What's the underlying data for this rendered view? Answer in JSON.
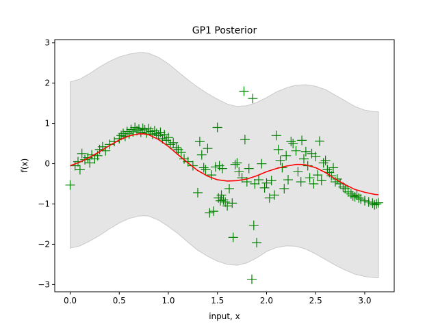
{
  "chart_data": {
    "type": "scatter",
    "title": "GP1 Posterior",
    "xlabel": "input, x",
    "ylabel": "f(x)",
    "xlim": [
      -0.157,
      3.3
    ],
    "ylim": [
      -3.18,
      3.08
    ],
    "x_ticks": [
      0.0,
      0.5,
      1.0,
      1.5,
      2.0,
      2.5,
      3.0
    ],
    "x_tick_labels": [
      "0.0",
      "0.5",
      "1.0",
      "1.5",
      "2.0",
      "2.5",
      "3.0"
    ],
    "y_ticks": [
      -3,
      -2,
      -1,
      0,
      1,
      2,
      3
    ],
    "y_tick_labels": [
      "−3",
      "−2",
      "−1",
      "0",
      "1",
      "2",
      "3"
    ],
    "grid": false,
    "colors": {
      "band_fill": "#e5e5e5",
      "band_stroke": "#c8c8c8",
      "mean_line": "#ff0000",
      "points": "#008000"
    },
    "series": [
      {
        "name": "confidence band",
        "kind": "band",
        "x": [
          0.0,
          0.1,
          0.2,
          0.3,
          0.4,
          0.5,
          0.6,
          0.7,
          0.75,
          0.8,
          0.9,
          1.0,
          1.1,
          1.2,
          1.3,
          1.4,
          1.5,
          1.6,
          1.7,
          1.8,
          1.9,
          2.0,
          2.1,
          2.2,
          2.3,
          2.4,
          2.5,
          2.6,
          2.7,
          2.8,
          2.9,
          3.0,
          3.1,
          3.14
        ],
        "upper": [
          2.03,
          2.1,
          2.24,
          2.4,
          2.54,
          2.65,
          2.72,
          2.76,
          2.76,
          2.74,
          2.64,
          2.48,
          2.28,
          2.08,
          1.9,
          1.74,
          1.6,
          1.48,
          1.42,
          1.44,
          1.52,
          1.64,
          1.78,
          1.88,
          1.95,
          1.96,
          1.92,
          1.84,
          1.7,
          1.56,
          1.42,
          1.33,
          1.29,
          1.29
        ],
        "lower": [
          -2.1,
          -2.04,
          -1.92,
          -1.78,
          -1.62,
          -1.47,
          -1.36,
          -1.3,
          -1.29,
          -1.3,
          -1.4,
          -1.56,
          -1.74,
          -1.95,
          -2.15,
          -2.3,
          -2.42,
          -2.5,
          -2.52,
          -2.46,
          -2.34,
          -2.18,
          -2.08,
          -2.04,
          -2.05,
          -2.12,
          -2.24,
          -2.38,
          -2.52,
          -2.64,
          -2.74,
          -2.8,
          -2.83,
          -2.83
        ]
      },
      {
        "name": "posterior mean",
        "kind": "line",
        "x": [
          0.0,
          0.1,
          0.2,
          0.3,
          0.4,
          0.5,
          0.6,
          0.7,
          0.75,
          0.8,
          0.9,
          1.0,
          1.1,
          1.2,
          1.3,
          1.4,
          1.5,
          1.6,
          1.7,
          1.8,
          1.9,
          2.0,
          2.1,
          2.2,
          2.3,
          2.35,
          2.4,
          2.5,
          2.6,
          2.7,
          2.8,
          2.9,
          3.0,
          3.1,
          3.14
        ],
        "y": [
          -0.05,
          0.04,
          0.16,
          0.3,
          0.45,
          0.59,
          0.69,
          0.74,
          0.74,
          0.72,
          0.6,
          0.43,
          0.22,
          0.02,
          -0.17,
          -0.31,
          -0.4,
          -0.43,
          -0.42,
          -0.38,
          -0.3,
          -0.2,
          -0.12,
          -0.06,
          -0.02,
          -0.02,
          -0.03,
          -0.1,
          -0.22,
          -0.38,
          -0.52,
          -0.64,
          -0.71,
          -0.76,
          -0.77
        ]
      },
      {
        "name": "observations",
        "kind": "scatter",
        "x": [
          0.0,
          0.05,
          0.08,
          0.1,
          0.12,
          0.15,
          0.18,
          0.2,
          0.22,
          0.25,
          0.28,
          0.3,
          0.33,
          0.36,
          0.4,
          0.45,
          0.5,
          0.52,
          0.54,
          0.56,
          0.58,
          0.6,
          0.62,
          0.64,
          0.66,
          0.68,
          0.7,
          0.72,
          0.74,
          0.76,
          0.78,
          0.8,
          0.82,
          0.84,
          0.86,
          0.88,
          0.9,
          0.92,
          0.94,
          0.96,
          0.98,
          1.0,
          1.02,
          1.05,
          1.08,
          1.1,
          1.13,
          1.16,
          1.2,
          1.25,
          1.3,
          1.32,
          1.34,
          1.36,
          1.38,
          1.4,
          1.42,
          1.44,
          1.46,
          1.48,
          1.5,
          1.51,
          1.52,
          1.53,
          1.54,
          1.55,
          1.56,
          1.58,
          1.6,
          1.62,
          1.65,
          1.66,
          1.68,
          1.7,
          1.72,
          1.75,
          1.77,
          1.78,
          1.8,
          1.82,
          1.85,
          1.86,
          1.87,
          1.88,
          1.9,
          1.92,
          1.95,
          1.98,
          2.0,
          2.03,
          2.05,
          2.08,
          2.1,
          2.12,
          2.14,
          2.16,
          2.18,
          2.2,
          2.22,
          2.25,
          2.27,
          2.3,
          2.32,
          2.35,
          2.36,
          2.38,
          2.4,
          2.42,
          2.44,
          2.46,
          2.48,
          2.5,
          2.52,
          2.54,
          2.56,
          2.58,
          2.6,
          2.62,
          2.64,
          2.66,
          2.68,
          2.7,
          2.72,
          2.75,
          2.78,
          2.8,
          2.83,
          2.86,
          2.88,
          2.9,
          2.92,
          2.94,
          2.96,
          3.0,
          3.04,
          3.08,
          3.1,
          3.12,
          3.14
        ],
        "y": [
          -0.53,
          -0.05,
          0.05,
          -0.15,
          0.25,
          0.1,
          0.15,
          0.02,
          0.22,
          0.12,
          0.2,
          0.35,
          0.42,
          0.32,
          0.48,
          0.55,
          0.62,
          0.7,
          0.75,
          0.68,
          0.8,
          0.74,
          0.85,
          0.79,
          0.9,
          0.82,
          0.86,
          0.78,
          0.88,
          0.84,
          0.76,
          0.87,
          0.8,
          0.73,
          0.82,
          0.75,
          0.7,
          0.78,
          0.62,
          0.72,
          0.58,
          0.65,
          0.48,
          0.52,
          0.4,
          0.35,
          0.28,
          0.12,
          0.05,
          -0.05,
          -0.72,
          0.55,
          0.22,
          -0.1,
          -0.15,
          0.38,
          -1.22,
          -0.28,
          -1.18,
          -0.08,
          0.9,
          -0.85,
          -0.05,
          -0.92,
          -0.78,
          -0.12,
          -0.9,
          -0.95,
          -1.05,
          -0.62,
          -0.98,
          -1.83,
          -0.02,
          0.02,
          -0.2,
          -0.35,
          1.8,
          0.6,
          -0.45,
          -0.12,
          -2.87,
          1.62,
          -1.53,
          -0.5,
          -1.96,
          -0.4,
          0.0,
          -0.6,
          -0.48,
          -0.85,
          -0.42,
          -0.78,
          0.7,
          0.35,
          0.08,
          -0.1,
          -0.62,
          0.2,
          -0.4,
          0.55,
          0.5,
          0.32,
          -0.2,
          -0.45,
          0.58,
          0.12,
          0.3,
          -0.05,
          -0.35,
          0.25,
          -0.5,
          0.18,
          -0.28,
          0.56,
          -0.42,
          0.02,
          0.08,
          -0.15,
          -0.22,
          -0.3,
          -0.1,
          -0.45,
          -0.38,
          -0.5,
          -0.58,
          -0.62,
          -0.7,
          -0.75,
          -0.8,
          -0.82,
          -0.78,
          -0.85,
          -0.88,
          -0.92,
          -0.95,
          -0.98,
          -1.02,
          -1.0,
          -0.97
        ]
      }
    ]
  }
}
